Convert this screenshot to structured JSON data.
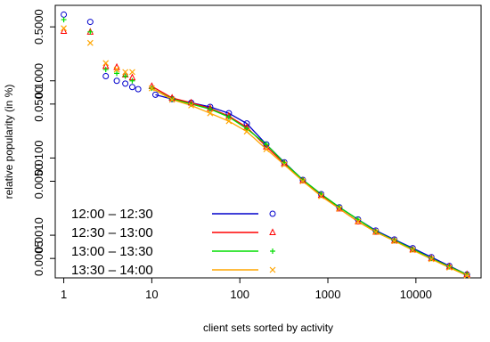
{
  "chart_data": {
    "type": "scatter",
    "title": "",
    "xlabel": "client sets sorted by activity",
    "ylabel": "relative popularity (in %)",
    "x_scale": "log",
    "y_scale": "log",
    "xlim": [
      0.8,
      55000
    ],
    "ylim": [
      0.00028,
      0.95
    ],
    "x_ticks": [
      {
        "value": 1,
        "label": "1"
      },
      {
        "value": 10,
        "label": "10"
      },
      {
        "value": 100,
        "label": "100"
      },
      {
        "value": 1000,
        "label": "1000"
      },
      {
        "value": 10000,
        "label": "10000"
      }
    ],
    "y_ticks": [
      {
        "value": 0.0005,
        "label": "0.0005"
      },
      {
        "value": 0.001,
        "label": "0.0010"
      },
      {
        "value": 0.005,
        "label": "0.0050"
      },
      {
        "value": 0.01,
        "label": "0.0100"
      },
      {
        "value": 0.05,
        "label": "0.0500"
      },
      {
        "value": 0.1,
        "label": "0.1000"
      },
      {
        "value": 0.5,
        "label": "0.5000"
      }
    ],
    "grid": false,
    "legend_position": "bottom-left",
    "series": [
      {
        "name": "12:00 – 12:30",
        "color": "#0000cc",
        "marker": "circle",
        "x": [
          1,
          2,
          3,
          4,
          5,
          6,
          7,
          11,
          17,
          28,
          46,
          75,
          120,
          200,
          320,
          520,
          840,
          1350,
          2200,
          3500,
          5700,
          9200,
          15000,
          24000,
          38000
        ],
        "y": [
          0.72,
          0.58,
          0.115,
          0.1,
          0.092,
          0.083,
          0.078,
          0.066,
          0.058,
          0.052,
          0.046,
          0.038,
          0.028,
          0.015,
          0.0088,
          0.0052,
          0.0034,
          0.0023,
          0.0016,
          0.00115,
          0.00088,
          0.00068,
          0.00052,
          0.0004,
          0.00031
        ]
      },
      {
        "name": "12:30 – 13:00",
        "color": "#ff0000",
        "marker": "triangle",
        "x": [
          1,
          2,
          3,
          4,
          5,
          6,
          10,
          17,
          28,
          46,
          75,
          120,
          200,
          320,
          520,
          840,
          1350,
          2200,
          3500,
          5700,
          9200,
          15000,
          24000,
          38000
        ],
        "y": [
          0.44,
          0.43,
          0.155,
          0.15,
          0.12,
          0.11,
          0.085,
          0.06,
          0.052,
          0.044,
          0.035,
          0.025,
          0.014,
          0.0085,
          0.0051,
          0.0033,
          0.0022,
          0.0015,
          0.0011,
          0.00085,
          0.00065,
          0.0005,
          0.00039,
          0.00031
        ]
      },
      {
        "name": "13:00 – 13:30",
        "color": "#00dd00",
        "marker": "plus",
        "x": [
          1,
          2,
          3,
          4,
          5,
          6,
          10,
          17,
          28,
          46,
          75,
          120,
          200,
          320,
          520,
          840,
          1350,
          2200,
          3500,
          5700,
          9200,
          15000,
          24000,
          38000
        ],
        "y": [
          0.62,
          0.43,
          0.14,
          0.125,
          0.115,
          0.1,
          0.08,
          0.058,
          0.05,
          0.043,
          0.034,
          0.024,
          0.015,
          0.0087,
          0.0052,
          0.0034,
          0.0023,
          0.0016,
          0.00112,
          0.00086,
          0.00066,
          0.0005,
          0.00039,
          0.00031
        ]
      },
      {
        "name": "13:30 – 14:00",
        "color": "#ffa500",
        "marker": "cross",
        "x": [
          1,
          2,
          3,
          4,
          5,
          6,
          10,
          17,
          28,
          46,
          75,
          120,
          200,
          320,
          520,
          840,
          1350,
          2200,
          3500,
          5700,
          9200,
          15000,
          24000,
          38000
        ],
        "y": [
          0.48,
          0.31,
          0.17,
          0.14,
          0.13,
          0.13,
          0.08,
          0.057,
          0.048,
          0.038,
          0.03,
          0.022,
          0.013,
          0.0082,
          0.005,
          0.0032,
          0.0022,
          0.0015,
          0.0011,
          0.00084,
          0.00064,
          0.00049,
          0.00038,
          0.0003
        ]
      }
    ]
  }
}
